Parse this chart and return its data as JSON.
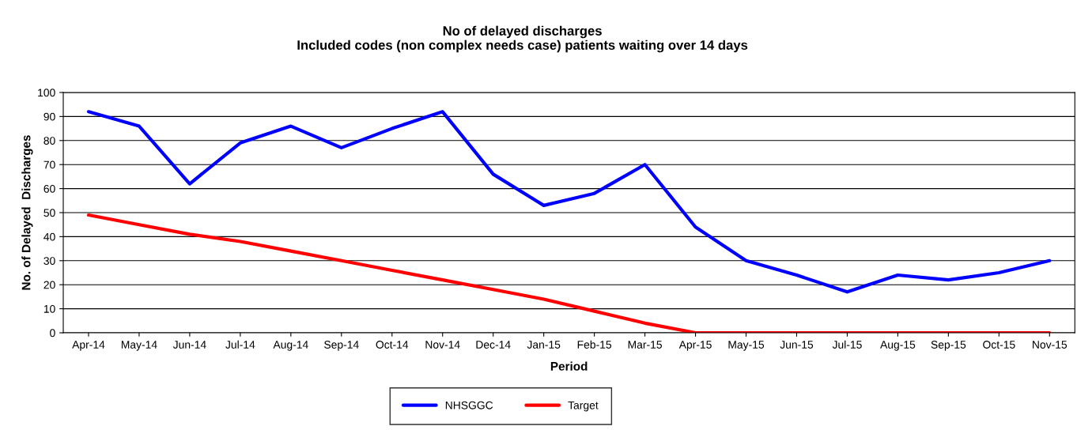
{
  "chart_data": {
    "type": "line",
    "title": "No of delayed discharges\nIncluded codes (non complex needs case) patients waiting over 14 days",
    "xlabel": "Period",
    "ylabel": "No. of Delayed  Discharges",
    "categories": [
      "Apr-14",
      "May-14",
      "Jun-14",
      "Jul-14",
      "Aug-14",
      "Sep-14",
      "Oct-14",
      "Nov-14",
      "Dec-14",
      "Jan-15",
      "Feb-15",
      "Mar-15",
      "Apr-15",
      "May-15",
      "Jun-15",
      "Jul-15",
      "Aug-15",
      "Sep-15",
      "Oct-15",
      "Nov-15"
    ],
    "series": [
      {
        "name": "NHSGGC",
        "color": "#0000ff",
        "values": [
          92,
          86,
          62,
          79,
          86,
          77,
          85,
          92,
          66,
          53,
          58,
          70,
          44,
          30,
          24,
          17,
          24,
          22,
          25,
          30
        ]
      },
      {
        "name": "Target",
        "color": "#ff0000",
        "values": [
          49,
          45,
          41,
          38,
          34,
          30,
          26,
          22,
          18,
          14,
          9,
          4,
          0,
          0,
          0,
          0,
          0,
          0,
          0,
          0
        ]
      }
    ],
    "ylim": [
      0,
      100
    ],
    "yticks": [
      0,
      10,
      20,
      30,
      40,
      50,
      60,
      70,
      80,
      90,
      100
    ],
    "grid": "y",
    "legend": "bottom",
    "marker": "none",
    "line_style": "solid"
  }
}
